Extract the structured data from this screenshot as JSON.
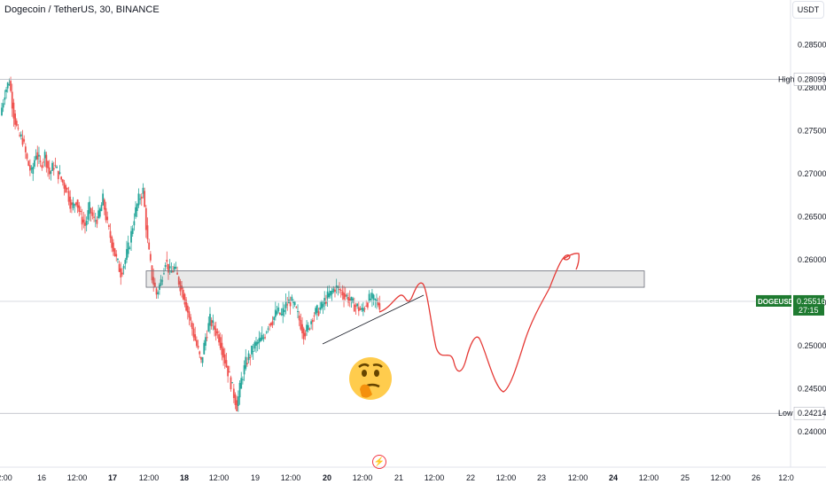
{
  "header": {
    "title": "Dogecoin / TetherUS, 30, BINANCE",
    "currency_button": "USDT"
  },
  "chart_data": {
    "type": "candlestick",
    "symbol": "DOGEUSDT",
    "price_axis_ticks": [
      "0.28500",
      "0.28000",
      "0.27500",
      "0.27000",
      "0.26500",
      "0.26000",
      "0.25500",
      "0.25000",
      "0.24500",
      "0.24000"
    ],
    "price_axis_values": [
      0.285,
      0.28,
      0.275,
      0.27,
      0.265,
      0.26,
      0.255,
      0.25,
      0.245,
      0.24
    ],
    "time_axis_ticks": [
      "2:00",
      "16",
      "12:00",
      "17",
      "12:00",
      "18",
      "12:00",
      "19",
      "12:00",
      "20",
      "12:00",
      "21",
      "12:00",
      "22",
      "12:00",
      "23",
      "12:00",
      "24",
      "12:00",
      "25",
      "12:00",
      "26",
      "12:0"
    ],
    "bold_time_ticks": [
      "17",
      "18",
      "20",
      "24"
    ],
    "high": {
      "label": "High",
      "value": "0.28099",
      "price": 0.28099
    },
    "low": {
      "label": "Low",
      "value": "0.24214",
      "price": 0.24214
    },
    "current": {
      "symbol": "DOGEUSDT",
      "value": "0.25516",
      "countdown": "27:15",
      "price": 0.25516
    },
    "resistance_zone": [
      0.2568,
      0.2587
    ],
    "support_trendline": [
      [
        0.25
      ],
      [
        0.2558
      ]
    ],
    "price_path": [
      0.2768,
      0.2795,
      0.2808,
      0.277,
      0.2745,
      0.274,
      0.2715,
      0.27,
      0.2725,
      0.271,
      0.2722,
      0.27,
      0.271,
      0.27,
      0.269,
      0.268,
      0.266,
      0.267,
      0.265,
      0.264,
      0.266,
      0.2645,
      0.265,
      0.267,
      0.264,
      0.262,
      0.26,
      0.2585,
      0.26,
      0.262,
      0.265,
      0.267,
      0.268,
      0.262,
      0.258,
      0.256,
      0.2575,
      0.26,
      0.2585,
      0.259,
      0.2575,
      0.256,
      0.254,
      0.252,
      0.25,
      0.248,
      0.251,
      0.253,
      0.252,
      0.251,
      0.249,
      0.247,
      0.245,
      0.243,
      0.246,
      0.248,
      0.249,
      0.25,
      0.2505,
      0.251,
      0.2525,
      0.253,
      0.254,
      0.2535,
      0.2548,
      0.2552,
      0.2545,
      0.253,
      0.2515,
      0.252,
      0.2535,
      0.254,
      0.2545,
      0.2555,
      0.256,
      0.2568,
      0.2565,
      0.256,
      0.2555,
      0.2548,
      0.2545,
      0.254,
      0.255,
      0.2555,
      0.2552,
      0.2548
    ]
  }
}
